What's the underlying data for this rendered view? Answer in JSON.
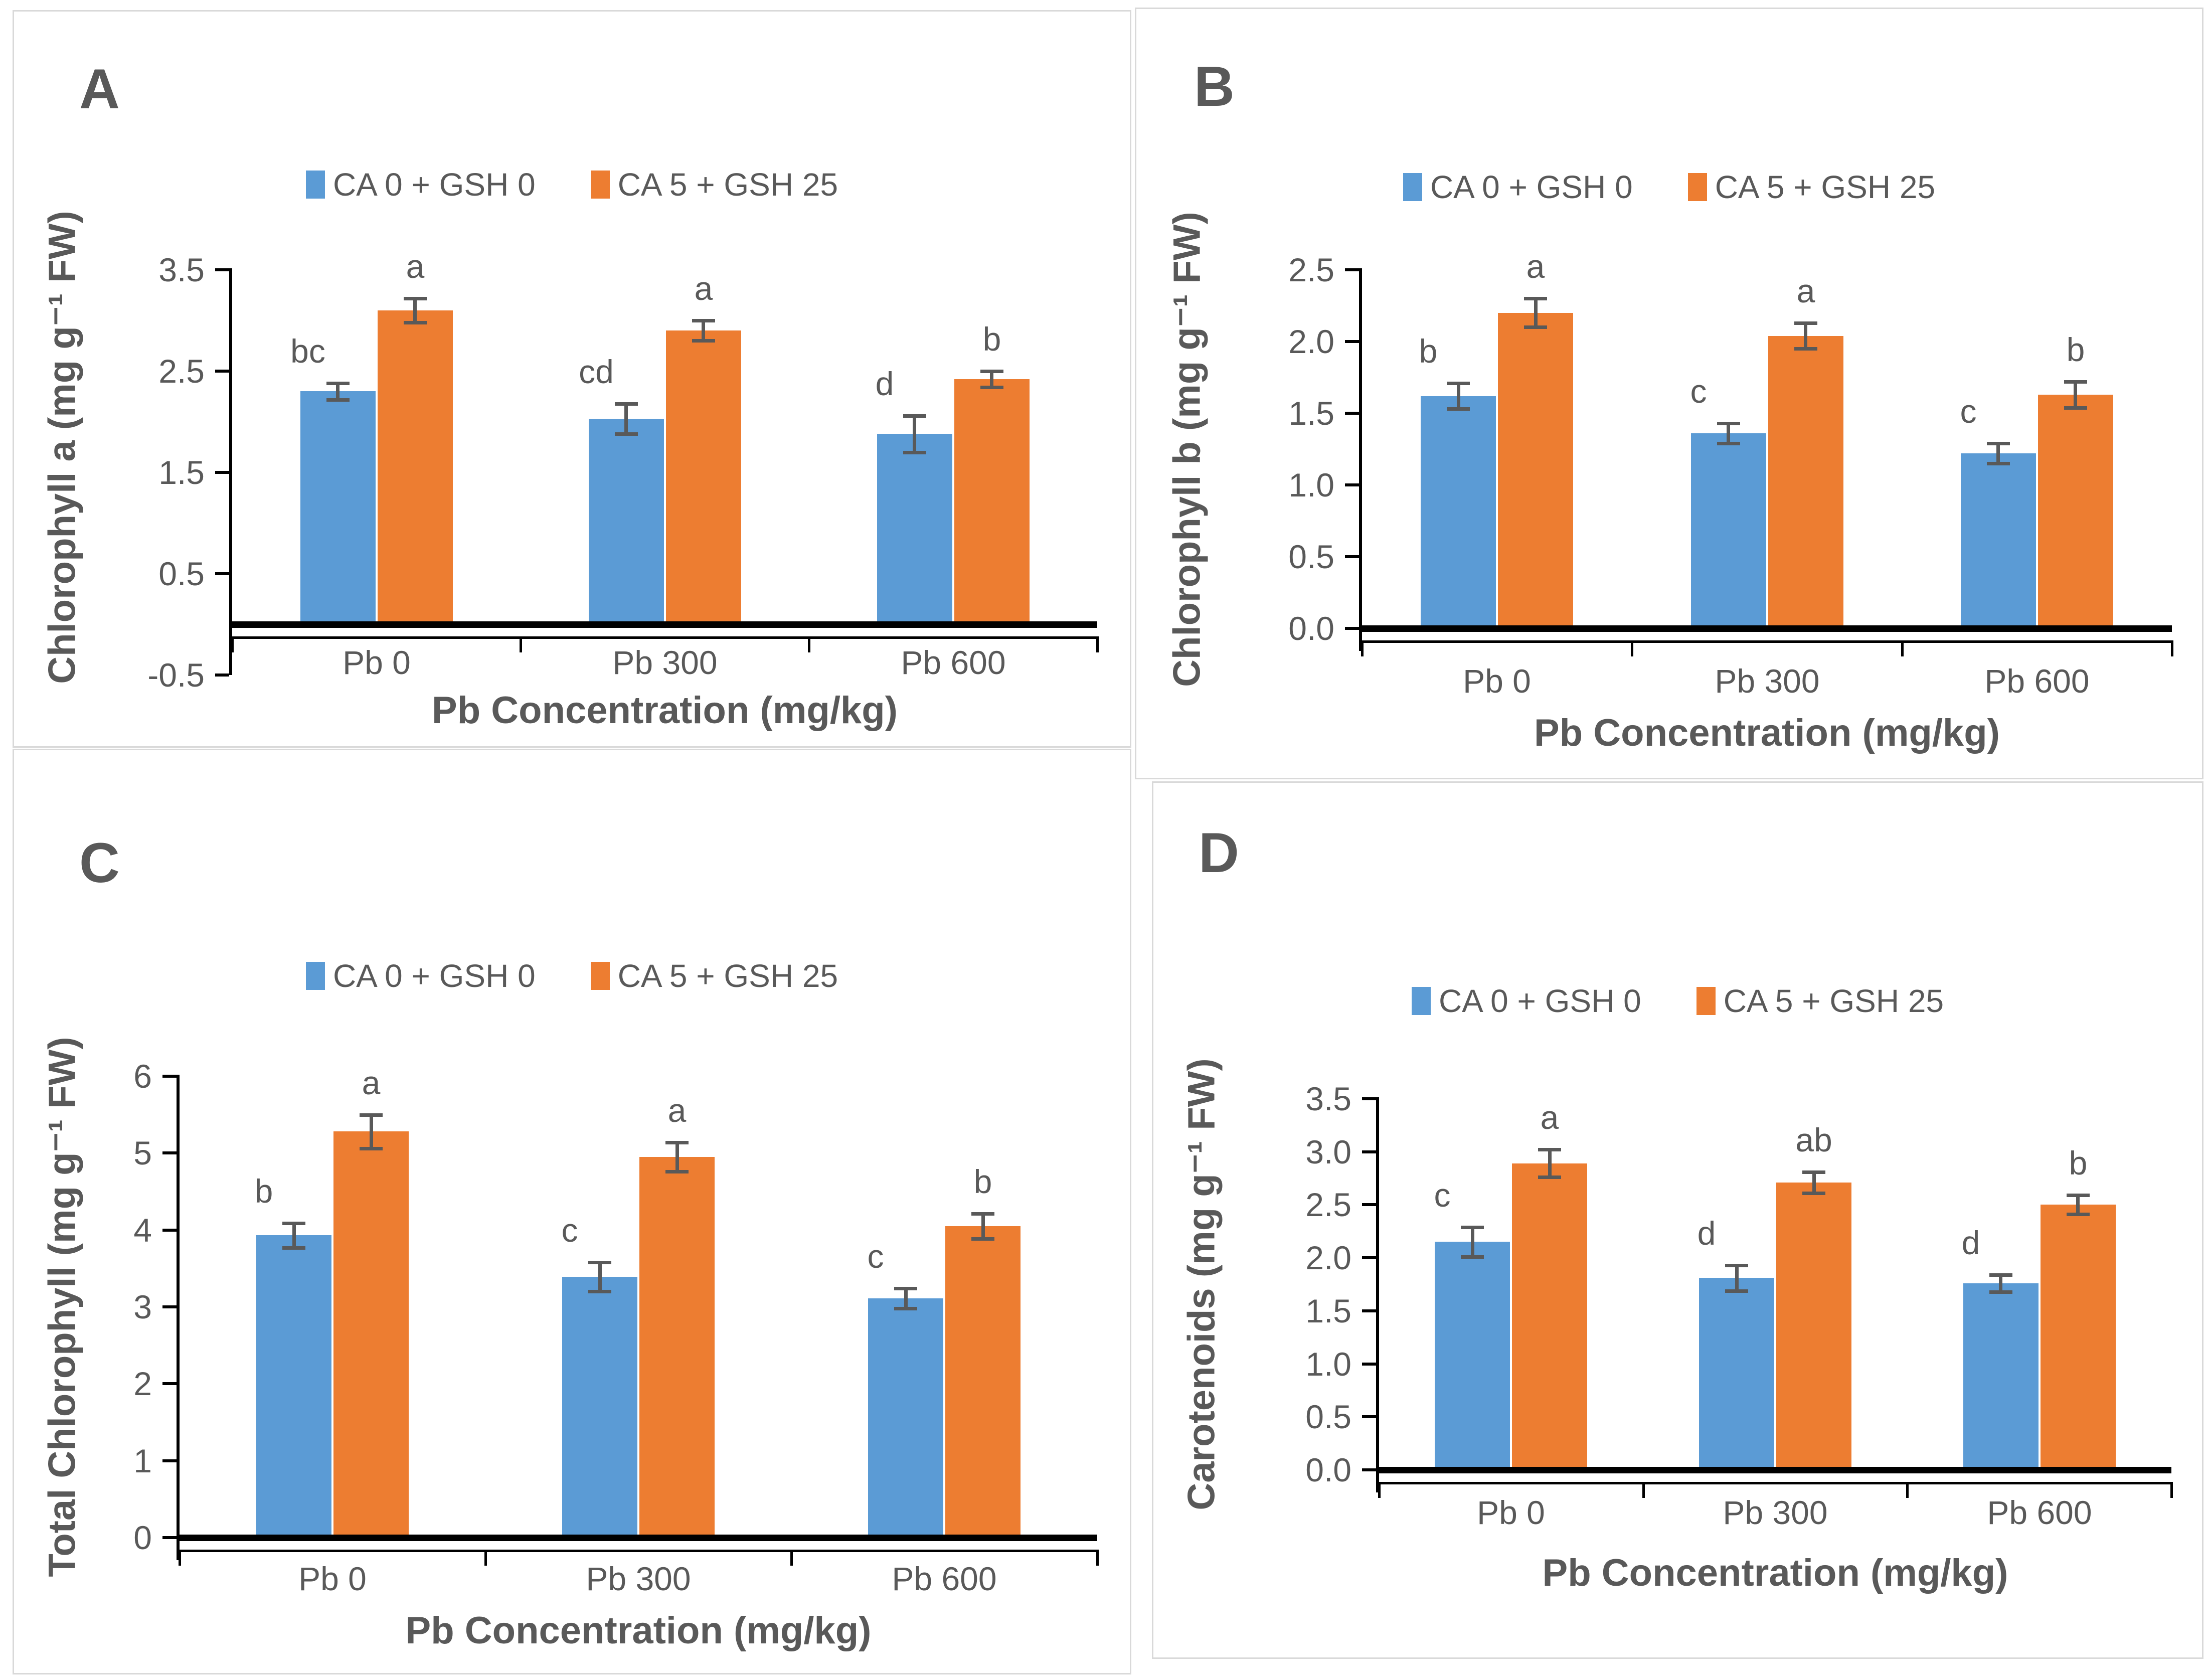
{
  "figure": {
    "background": "#ffffff",
    "panel_border_color": "#D9D9D9",
    "text_color": "#595959",
    "axis_color": "#000000",
    "error_bar_color": "#595959"
  },
  "legend": {
    "items": [
      {
        "label": "CA 0 + GSH 0",
        "color": "#5B9BD5"
      },
      {
        "label": "CA 5 + GSH 25",
        "color": "#ED7D31"
      }
    ]
  },
  "chart_data": [
    {
      "panel": "A",
      "type": "bar",
      "ylabel": "Chlorophyll a (mg g⁻¹ FW)",
      "xlabel": "Pb Concentration (mg/kg)",
      "categories": [
        "Pb 0",
        "Pb 300",
        "Pb 600"
      ],
      "ylim": [
        -0.5,
        3.5
      ],
      "grid": false,
      "legend_position": "top",
      "yticks": [
        {
          "v": 3.5,
          "label": "3.5"
        },
        {
          "v": 2.5,
          "label": "2.5"
        },
        {
          "v": 1.5,
          "label": "1.5"
        },
        {
          "v": 0.5,
          "label": "0.5"
        },
        {
          "v": -0.5,
          "label": "-0.5"
        }
      ],
      "series": [
        {
          "name": "CA 0 + GSH 0",
          "color": "#5B9BD5",
          "values": [
            2.3,
            2.03,
            1.88
          ],
          "errors": [
            0.08,
            0.15,
            0.18
          ],
          "letters": [
            "bc",
            "cd",
            "d"
          ]
        },
        {
          "name": "CA 5 + GSH 25",
          "color": "#ED7D31",
          "values": [
            3.1,
            2.9,
            2.42
          ],
          "errors": [
            0.12,
            0.1,
            0.08
          ],
          "letters": [
            "a",
            "a",
            "b"
          ]
        }
      ]
    },
    {
      "panel": "B",
      "type": "bar",
      "ylabel": "Chlorophyll b (mg g⁻¹ FW)",
      "xlabel": "Pb Concentration (mg/kg)",
      "categories": [
        "Pb 0",
        "Pb 300",
        "Pb 600"
      ],
      "ylim": [
        0,
        2.5
      ],
      "grid": false,
      "legend_position": "top",
      "yticks": [
        {
          "v": 2.5,
          "label": "2.5"
        },
        {
          "v": 2.0,
          "label": "2.0"
        },
        {
          "v": 1.5,
          "label": "1.5"
        },
        {
          "v": 1.0,
          "label": "1.0"
        },
        {
          "v": 0.5,
          "label": "0.5"
        },
        {
          "v": 0.0,
          "label": "0.0"
        }
      ],
      "series": [
        {
          "name": "CA 0 + GSH 0",
          "color": "#5B9BD5",
          "values": [
            1.62,
            1.36,
            1.22
          ],
          "errors": [
            0.09,
            0.07,
            0.07
          ],
          "letters": [
            "b",
            "c",
            "c"
          ]
        },
        {
          "name": "CA 5 + GSH 25",
          "color": "#ED7D31",
          "values": [
            2.2,
            2.04,
            1.63
          ],
          "errors": [
            0.1,
            0.09,
            0.09
          ],
          "letters": [
            "a",
            "a",
            "b"
          ]
        }
      ]
    },
    {
      "panel": "C",
      "type": "bar",
      "ylabel": "Total Chlorophyll (mg g⁻¹ FW)",
      "xlabel": "Pb Concentration (mg/kg)",
      "categories": [
        "Pb 0",
        "Pb 300",
        "Pb 600"
      ],
      "ylim": [
        0,
        6
      ],
      "grid": false,
      "legend_position": "top",
      "yticks": [
        {
          "v": 6,
          "label": "6"
        },
        {
          "v": 5,
          "label": "5"
        },
        {
          "v": 4,
          "label": "4"
        },
        {
          "v": 3,
          "label": "3"
        },
        {
          "v": 2,
          "label": "2"
        },
        {
          "v": 1,
          "label": "1"
        },
        {
          "v": 0,
          "label": "0"
        }
      ],
      "series": [
        {
          "name": "CA 0 + GSH 0",
          "color": "#5B9BD5",
          "values": [
            3.93,
            3.39,
            3.11
          ],
          "errors": [
            0.16,
            0.19,
            0.13
          ],
          "letters": [
            "b",
            "c",
            "c"
          ]
        },
        {
          "name": "CA 5 + GSH 25",
          "color": "#ED7D31",
          "values": [
            5.28,
            4.95,
            4.05
          ],
          "errors": [
            0.22,
            0.19,
            0.16
          ],
          "letters": [
            "a",
            "a",
            "b"
          ]
        }
      ]
    },
    {
      "panel": "D",
      "type": "bar",
      "ylabel": "Carotenoids (mg g⁻¹ FW)",
      "xlabel": "Pb Concentration (mg/kg)",
      "categories": [
        "Pb 0",
        "Pb 300",
        "Pb 600"
      ],
      "ylim": [
        0,
        3.5
      ],
      "grid": false,
      "legend_position": "top",
      "yticks": [
        {
          "v": 3.5,
          "label": "3.5"
        },
        {
          "v": 3.0,
          "label": "3.0"
        },
        {
          "v": 2.5,
          "label": "2.5"
        },
        {
          "v": 2.0,
          "label": "2.0"
        },
        {
          "v": 1.5,
          "label": "1.5"
        },
        {
          "v": 1.0,
          "label": "1.0"
        },
        {
          "v": 0.5,
          "label": "0.5"
        },
        {
          "v": 0.0,
          "label": "0.0"
        }
      ],
      "series": [
        {
          "name": "CA 0 + GSH 0",
          "color": "#5B9BD5",
          "values": [
            2.15,
            1.81,
            1.76
          ],
          "errors": [
            0.14,
            0.12,
            0.08
          ],
          "letters": [
            "c",
            "d",
            "d"
          ]
        },
        {
          "name": "CA 5 + GSH 25",
          "color": "#ED7D31",
          "values": [
            2.89,
            2.71,
            2.5
          ],
          "errors": [
            0.13,
            0.1,
            0.09
          ],
          "letters": [
            "a",
            "ab",
            "b"
          ]
        }
      ]
    }
  ]
}
